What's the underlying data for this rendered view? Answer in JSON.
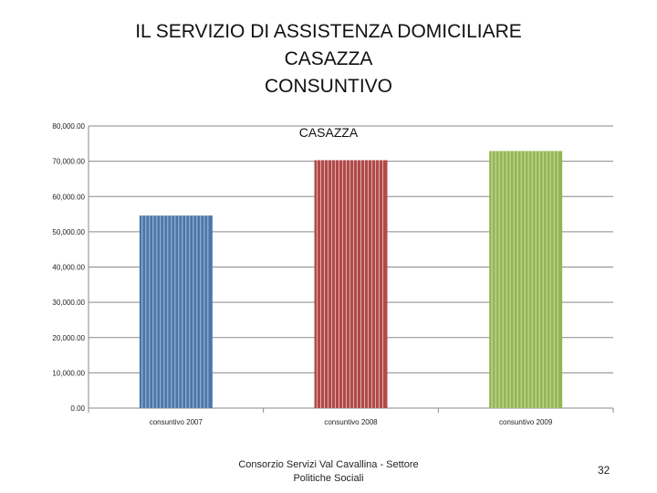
{
  "slide": {
    "title_lines": [
      "IL SERVIZIO DI ASSISTENZA DOMICILIARE",
      "CASAZZA",
      "CONSUNTIVO"
    ],
    "footer_line1": "Consorzio Servizi Val Cavallina - Settore",
    "footer_line2": "Politiche Sociali",
    "page_number": "32"
  },
  "chart_data": {
    "type": "bar",
    "title": "CASAZZA",
    "categories": [
      "consuntivo 2007",
      "consuntivo 2008",
      "consuntivo 2009"
    ],
    "values": [
      54600,
      70300,
      72900
    ],
    "colors": [
      "#4a76aa",
      "#b04a48",
      "#94b651"
    ],
    "ylim": [
      0,
      80000
    ],
    "yticks": [
      0,
      10000,
      20000,
      30000,
      40000,
      50000,
      60000,
      70000,
      80000
    ],
    "ytick_labels": [
      "0.00",
      "10,000.00",
      "20,000.00",
      "30,000.00",
      "40,000.00",
      "50,000.00",
      "60,000.00",
      "70,000.00",
      "80,000.00"
    ],
    "grid": true,
    "xlabel": "",
    "ylabel": ""
  }
}
